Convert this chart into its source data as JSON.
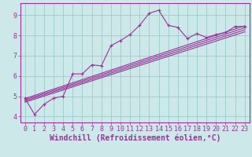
{
  "xlabel": "Windchill (Refroidissement éolien,°C)",
  "background_color": "#cce8e8",
  "line_color": "#993399",
  "grid_color": "#99cccc",
  "xlim": [
    -0.5,
    23.5
  ],
  "ylim": [
    3.7,
    9.6
  ],
  "xticks": [
    0,
    1,
    2,
    3,
    4,
    5,
    6,
    7,
    8,
    9,
    10,
    11,
    12,
    13,
    14,
    15,
    16,
    17,
    18,
    19,
    20,
    21,
    22,
    23
  ],
  "yticks": [
    4,
    5,
    6,
    7,
    8,
    9
  ],
  "main_x": [
    0,
    1,
    2,
    3,
    4,
    5,
    6,
    7,
    8,
    9,
    10,
    11,
    12,
    13,
    14,
    15,
    16,
    17,
    18,
    19,
    20,
    21,
    22,
    23
  ],
  "main_y": [
    4.9,
    4.1,
    4.6,
    4.9,
    5.0,
    6.1,
    6.1,
    6.55,
    6.5,
    7.5,
    7.75,
    8.05,
    8.5,
    9.1,
    9.25,
    8.5,
    8.4,
    7.85,
    8.1,
    7.9,
    8.05,
    8.15,
    8.45,
    8.45
  ],
  "line1_x": [
    0,
    23
  ],
  "line1_y": [
    4.88,
    8.48
  ],
  "line2_x": [
    0,
    23
  ],
  "line2_y": [
    4.82,
    8.38
  ],
  "line3_x": [
    0,
    23
  ],
  "line3_y": [
    4.76,
    8.28
  ],
  "line4_x": [
    0,
    23
  ],
  "line4_y": [
    4.7,
    8.18
  ],
  "font_color": "#993399",
  "label_fontsize": 6,
  "tick_fontsize": 6
}
